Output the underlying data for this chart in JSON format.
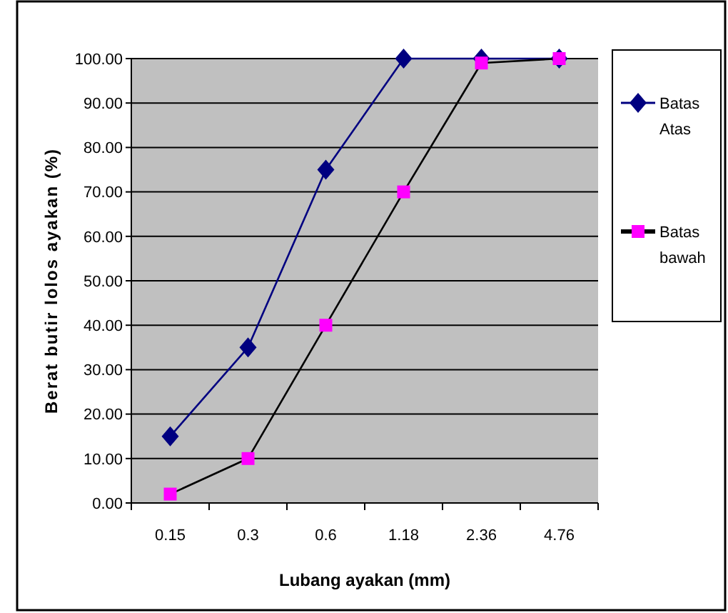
{
  "chart_data": {
    "type": "line",
    "xlabel": "Lubang ayakan (mm)",
    "ylabel": "Berat butir lolos ayakan (%)",
    "categories": [
      "0.15",
      "0.3",
      "0.6",
      "1.18",
      "2.36",
      "4.76"
    ],
    "series": [
      {
        "name": "Batas Atas",
        "color": "#000080",
        "marker": "diamond",
        "values": [
          15,
          35,
          75,
          100,
          100,
          100
        ]
      },
      {
        "name": "Batas bawah",
        "color": "#000000",
        "colors": [
          "#ff00ff",
          "#ff00ff",
          "#ff00ff",
          "#ff00ff",
          "#ff00ff",
          "#ff00ff"
        ],
        "marker": "square",
        "values": [
          2,
          10,
          40,
          70,
          99,
          100
        ]
      }
    ],
    "ylim": [
      0,
      100
    ],
    "yticks": [
      {
        "value": 0,
        "label": "0.00"
      },
      {
        "value": 10,
        "label": "10.00"
      },
      {
        "value": 20,
        "label": "20.00"
      },
      {
        "value": 30,
        "label": "30.00"
      },
      {
        "value": 40,
        "label": "40.00"
      },
      {
        "value": 50,
        "label": "50.00"
      },
      {
        "value": 60,
        "label": "60.00"
      },
      {
        "value": 70,
        "label": "70.00"
      },
      {
        "value": 80,
        "label": "80.00"
      },
      {
        "value": 90,
        "label": "90.00"
      },
      {
        "value": 100,
        "label": "100.00"
      }
    ],
    "grid": "y",
    "legend": "right"
  }
}
